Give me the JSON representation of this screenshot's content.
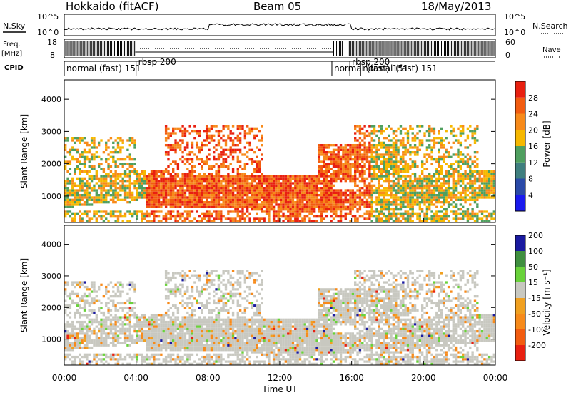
{
  "header": {
    "station": "Hokkaido (fitACF)",
    "beam": "Beam 05",
    "date": "18/May/2013"
  },
  "top_panels": {
    "nsky_label": "N.Sky",
    "nsearch_label": "N.Search",
    "noise_ticks": [
      "10^5",
      "10^0"
    ],
    "freq_label_1": "Freq.",
    "freq_label_2": "[MHz]",
    "freq_ticks": [
      "18",
      "8"
    ],
    "nave_label": "Nave",
    "nave_ticks": [
      "60",
      "0"
    ],
    "cpid_label": "CPID",
    "cpid_segments": [
      {
        "label": "normal (fast) 151",
        "start_hour": 0.0
      },
      {
        "label": "rbsp 200",
        "start_hour": 4.0
      },
      {
        "label": "normal (fast) 151",
        "start_hour": 14.9
      },
      {
        "label": "rbsp 200",
        "start_hour": 15.9
      },
      {
        "label": "normal (fast) 151",
        "start_hour": 16.5
      }
    ]
  },
  "power_colors": [
    "#1a1aee",
    "#2a4aa8",
    "#3f7f7f",
    "#4f9f5f",
    "#f6b800",
    "#f78a1a",
    "#f25c10",
    "#e82010"
  ],
  "velocity_colors": [
    "#e82010",
    "#f25c10",
    "#f78a1a",
    "#f0a020",
    "#c8c8c0",
    "#69d23a",
    "#3f8f3f",
    "#1a1aa0"
  ],
  "chart_data": [
    {
      "type": "heatmap",
      "title": "Power",
      "xlabel": "",
      "ylabel": "Slant Range [km]",
      "xlim": [
        0,
        24
      ],
      "ylim": [
        180,
        4600
      ],
      "yticks": [
        "1000",
        "2000",
        "3000",
        "4000"
      ],
      "colorbar": {
        "label": "Power [dB]",
        "ticks": [
          "4",
          "8",
          "12",
          "16",
          "20",
          "24",
          "28"
        ],
        "range": [
          0,
          32
        ]
      }
    },
    {
      "type": "heatmap",
      "title": "Velocity",
      "xlabel": "Time UT",
      "ylabel": "Slant Range [km]",
      "xlim": [
        0,
        24
      ],
      "ylim": [
        180,
        4600
      ],
      "yticks": [
        "1000",
        "2000",
        "3000",
        "4000"
      ],
      "xticks": [
        "00:00",
        "04:00",
        "08:00",
        "12:00",
        "16:00",
        "20:00",
        "00:00"
      ],
      "colorbar": {
        "label": "Velocity [m s⁻¹]",
        "ticks": [
          "-200",
          "-100",
          "-50",
          "-15",
          "15",
          "50",
          "100",
          "200"
        ],
        "range": [
          -250,
          250
        ]
      }
    }
  ]
}
